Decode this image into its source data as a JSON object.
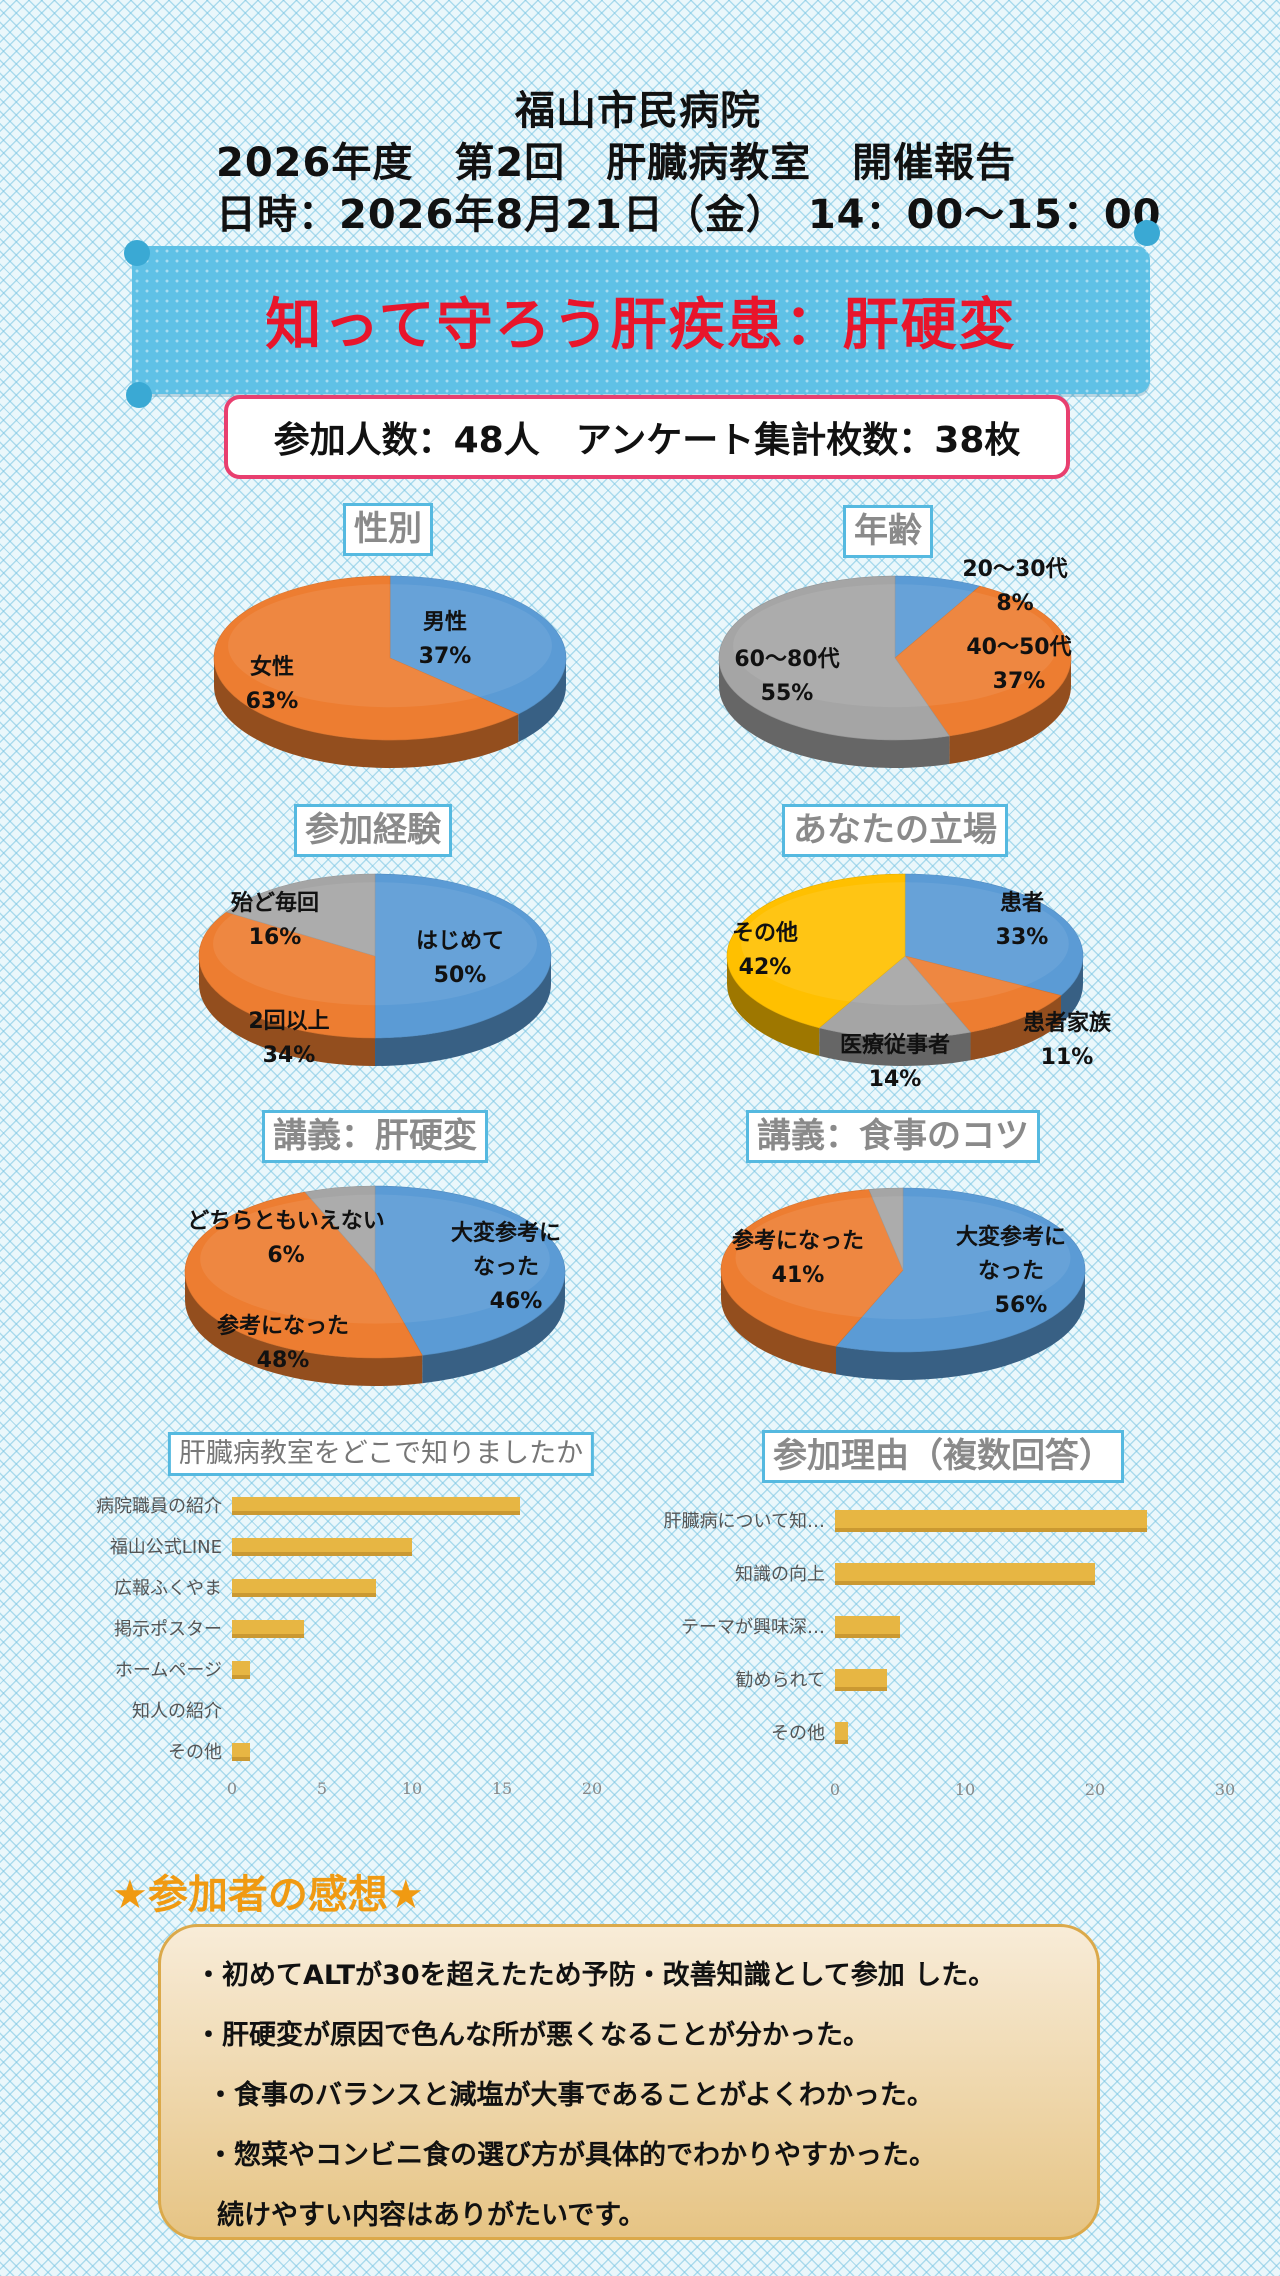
{
  "header": {
    "hospital": "福山市民病院",
    "event": "2026年度　第2回　肝臓病教室　開催報告",
    "datetime": "日時：2026年8月21日（金）　14：00～15：00"
  },
  "banner": {
    "title": "知って守ろう肝疾患：肝硬変"
  },
  "summary": {
    "text": "参加人数：48人　アンケート集計枚数：38枚"
  },
  "colors": {
    "blue": "#5b9bd5",
    "orange": "#ed7d31",
    "gray": "#a5a5a5",
    "yellow": "#ffc000",
    "bar": "#e7b643"
  },
  "chart_data": [
    {
      "id": "gender",
      "type": "pie",
      "title": "性別",
      "slices": [
        {
          "label": "男性",
          "value": 37,
          "display": "37%"
        },
        {
          "label": "女性",
          "value": 63,
          "display": "63%"
        }
      ]
    },
    {
      "id": "age",
      "type": "pie",
      "title": "年齢",
      "slices": [
        {
          "label": "20～30代",
          "value": 8,
          "display": "8%"
        },
        {
          "label": "40～50代",
          "value": 37,
          "display": "37%"
        },
        {
          "label": "60～80代",
          "value": 55,
          "display": "55%"
        }
      ]
    },
    {
      "id": "experience",
      "type": "pie",
      "title": "参加経験",
      "slices": [
        {
          "label": "はじめて",
          "value": 50,
          "display": "50%"
        },
        {
          "label": "2回以上",
          "value": 34,
          "display": "34%"
        },
        {
          "label": "殆ど毎回",
          "value": 16,
          "display": "16%"
        }
      ]
    },
    {
      "id": "position",
      "type": "pie",
      "title": "あなたの立場",
      "slices": [
        {
          "label": "患者",
          "value": 33,
          "display": "33%"
        },
        {
          "label": "患者家族",
          "value": 11,
          "display": "11%"
        },
        {
          "label": "医療従事者",
          "value": 14,
          "display": "14%"
        },
        {
          "label": "その他",
          "value": 42,
          "display": "42%"
        }
      ]
    },
    {
      "id": "lecture1",
      "type": "pie",
      "title": "講義：肝硬変",
      "slices": [
        {
          "label": "大変参考に\nなった",
          "value": 46,
          "display": "46%"
        },
        {
          "label": "参考になった",
          "value": 48,
          "display": "48%"
        },
        {
          "label": "どちらともいえない",
          "value": 6,
          "display": "6%"
        }
      ]
    },
    {
      "id": "lecture2",
      "type": "pie",
      "title": "講義：食事のコツ",
      "slices": [
        {
          "label": "大変参考に\nなった",
          "value": 56,
          "display": "56%"
        },
        {
          "label": "参考になった",
          "value": 41,
          "display": "41%"
        },
        {
          "label": "",
          "value": 3,
          "display": ""
        }
      ]
    },
    {
      "id": "source",
      "type": "bar",
      "orientation": "horizontal",
      "title": "肝臓病教室をどこで知りましたか",
      "categories": [
        "病院職員の紹介",
        "福山公式LINE",
        "広報ふくやま",
        "掲示ポスター",
        "ホームページ",
        "知人の紹介",
        "その他"
      ],
      "values": [
        16,
        10,
        8,
        4,
        1,
        0,
        1
      ],
      "xlim": [
        0,
        20
      ],
      "xticks": [
        0,
        5,
        10,
        15,
        20
      ]
    },
    {
      "id": "reason",
      "type": "bar",
      "orientation": "horizontal",
      "title": "参加理由（複数回答）",
      "categories": [
        "肝臓病について知…",
        "知識の向上",
        "テーマが興味深…",
        "勧められて",
        "その他"
      ],
      "values": [
        24,
        20,
        5,
        4,
        1
      ],
      "xlim": [
        0,
        30
      ],
      "xticks": [
        0,
        10,
        20,
        30
      ]
    }
  ],
  "impressions": {
    "title": "★参加者の感想★",
    "items": [
      "・初めてALTが30を超えたため予防・改善知識として参加 した。",
      "・肝硬変が原因で色んな所が悪くなることが分かった。",
      "・食事のバランスと減塩が大事であることがよくわかった。",
      "・惣菜やコンビニ食の選び方が具体的でわかりやすかった。",
      "続けやすい内容はありがたいです。"
    ]
  }
}
